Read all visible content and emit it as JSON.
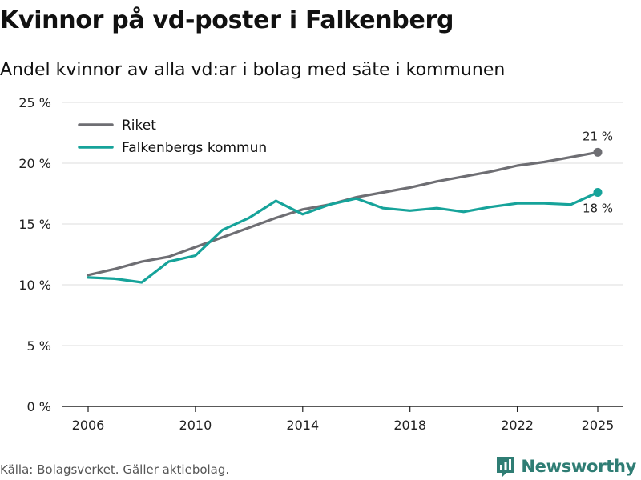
{
  "title": "Kvinnor på vd-poster i Falkenberg",
  "subtitle": "Andel kvinnor av alla vd:ar i bolag med säte i kommunen",
  "source": "Källa: Bolagsverket. Gäller aktiebolag.",
  "brand": "Newsworthy",
  "colors": {
    "riket": "#6e6e73",
    "falkenberg": "#16a39a",
    "grid": "#dddddd",
    "axis": "#222222",
    "brand": "#2f7d74"
  },
  "chart_data": {
    "type": "line",
    "title": "Kvinnor på vd-poster i Falkenberg",
    "subtitle": "Andel kvinnor av alla vd:ar i bolag med säte i kommunen",
    "xlabel": "",
    "ylabel": "",
    "ylim": [
      0,
      25
    ],
    "xlim": [
      2006,
      2025
    ],
    "grid": true,
    "legend_position": "top-left",
    "y_ticks": [
      0,
      5,
      10,
      15,
      20,
      25
    ],
    "y_tick_labels": [
      "0 %",
      "5 %",
      "10 %",
      "15 %",
      "20 %",
      "25 %"
    ],
    "x_ticks": [
      2006,
      2010,
      2014,
      2018,
      2022,
      2025
    ],
    "x_tick_labels": [
      "2006",
      "2010",
      "2014",
      "2018",
      "2022",
      "2025"
    ],
    "x": [
      2006,
      2007,
      2008,
      2009,
      2010,
      2011,
      2012,
      2013,
      2014,
      2015,
      2016,
      2017,
      2018,
      2019,
      2020,
      2021,
      2022,
      2023,
      2024,
      2025
    ],
    "series": [
      {
        "name": "Riket",
        "key": "riket",
        "values": [
          10.8,
          11.3,
          11.9,
          12.3,
          13.1,
          13.9,
          14.7,
          15.5,
          16.2,
          16.6,
          17.2,
          17.6,
          18.0,
          18.5,
          18.9,
          19.3,
          19.8,
          20.1,
          20.5,
          20.9
        ],
        "end_label": "21 %"
      },
      {
        "name": "Falkenbergs kommun",
        "key": "falkenberg",
        "values": [
          10.6,
          10.5,
          10.2,
          11.9,
          12.4,
          14.5,
          15.5,
          16.9,
          15.8,
          16.6,
          17.1,
          16.3,
          16.1,
          16.3,
          16.0,
          16.4,
          16.7,
          16.7,
          16.6,
          17.6
        ],
        "end_label": "18 %"
      }
    ]
  }
}
